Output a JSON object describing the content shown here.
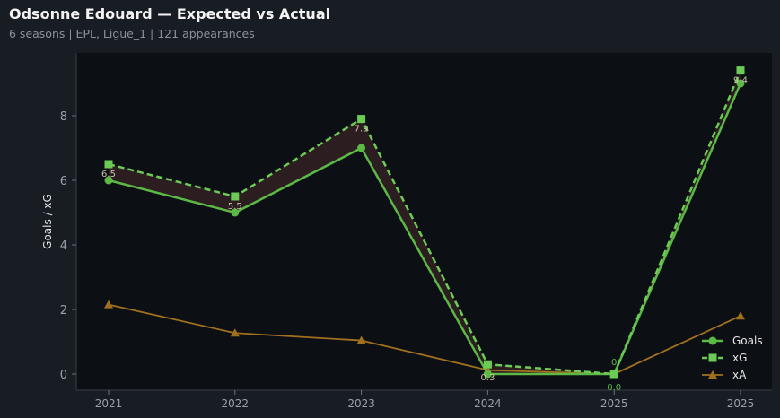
{
  "header": {
    "title": "Odsonne Edouard — Expected vs Actual",
    "subtitle": "6 seasons | EPL, Ligue_1 | 121 appearances"
  },
  "colors": {
    "background": "#181c23",
    "plot_background": "#0c0f14",
    "goals": "#5cb946",
    "xg": "#6ccb55",
    "xa": "#a0701f",
    "gap_fill": "#2e1f22"
  },
  "chart_data": {
    "type": "line",
    "categories": [
      "2021",
      "2022",
      "2023",
      "2024",
      "2025",
      "2025"
    ],
    "ylabel": "Goals / xG",
    "xlabel": "",
    "ylim": [
      -0.5,
      9.9
    ],
    "yticks": [
      0,
      2,
      4,
      6,
      8
    ],
    "grid": false,
    "legend_position": "bottom-right",
    "series": [
      {
        "name": "Goals",
        "values": [
          6,
          5,
          7,
          0,
          0,
          9
        ],
        "marker": "circle",
        "style": "solid"
      },
      {
        "name": "xG",
        "values": [
          6.5,
          5.5,
          7.9,
          0.3,
          0.0,
          9.4
        ],
        "marker": "square",
        "style": "dashed"
      },
      {
        "name": "xA",
        "values": [
          2.15,
          1.27,
          1.04,
          0.12,
          0.0,
          1.8
        ],
        "marker": "triangle",
        "style": "solid"
      }
    ],
    "data_labels": [
      "6.5",
      "5.5",
      "7.9",
      "0.3",
      "0.0",
      "9.4"
    ],
    "data_labels_xg_low": [
      "",
      "",
      "",
      "",
      "0",
      ""
    ]
  }
}
